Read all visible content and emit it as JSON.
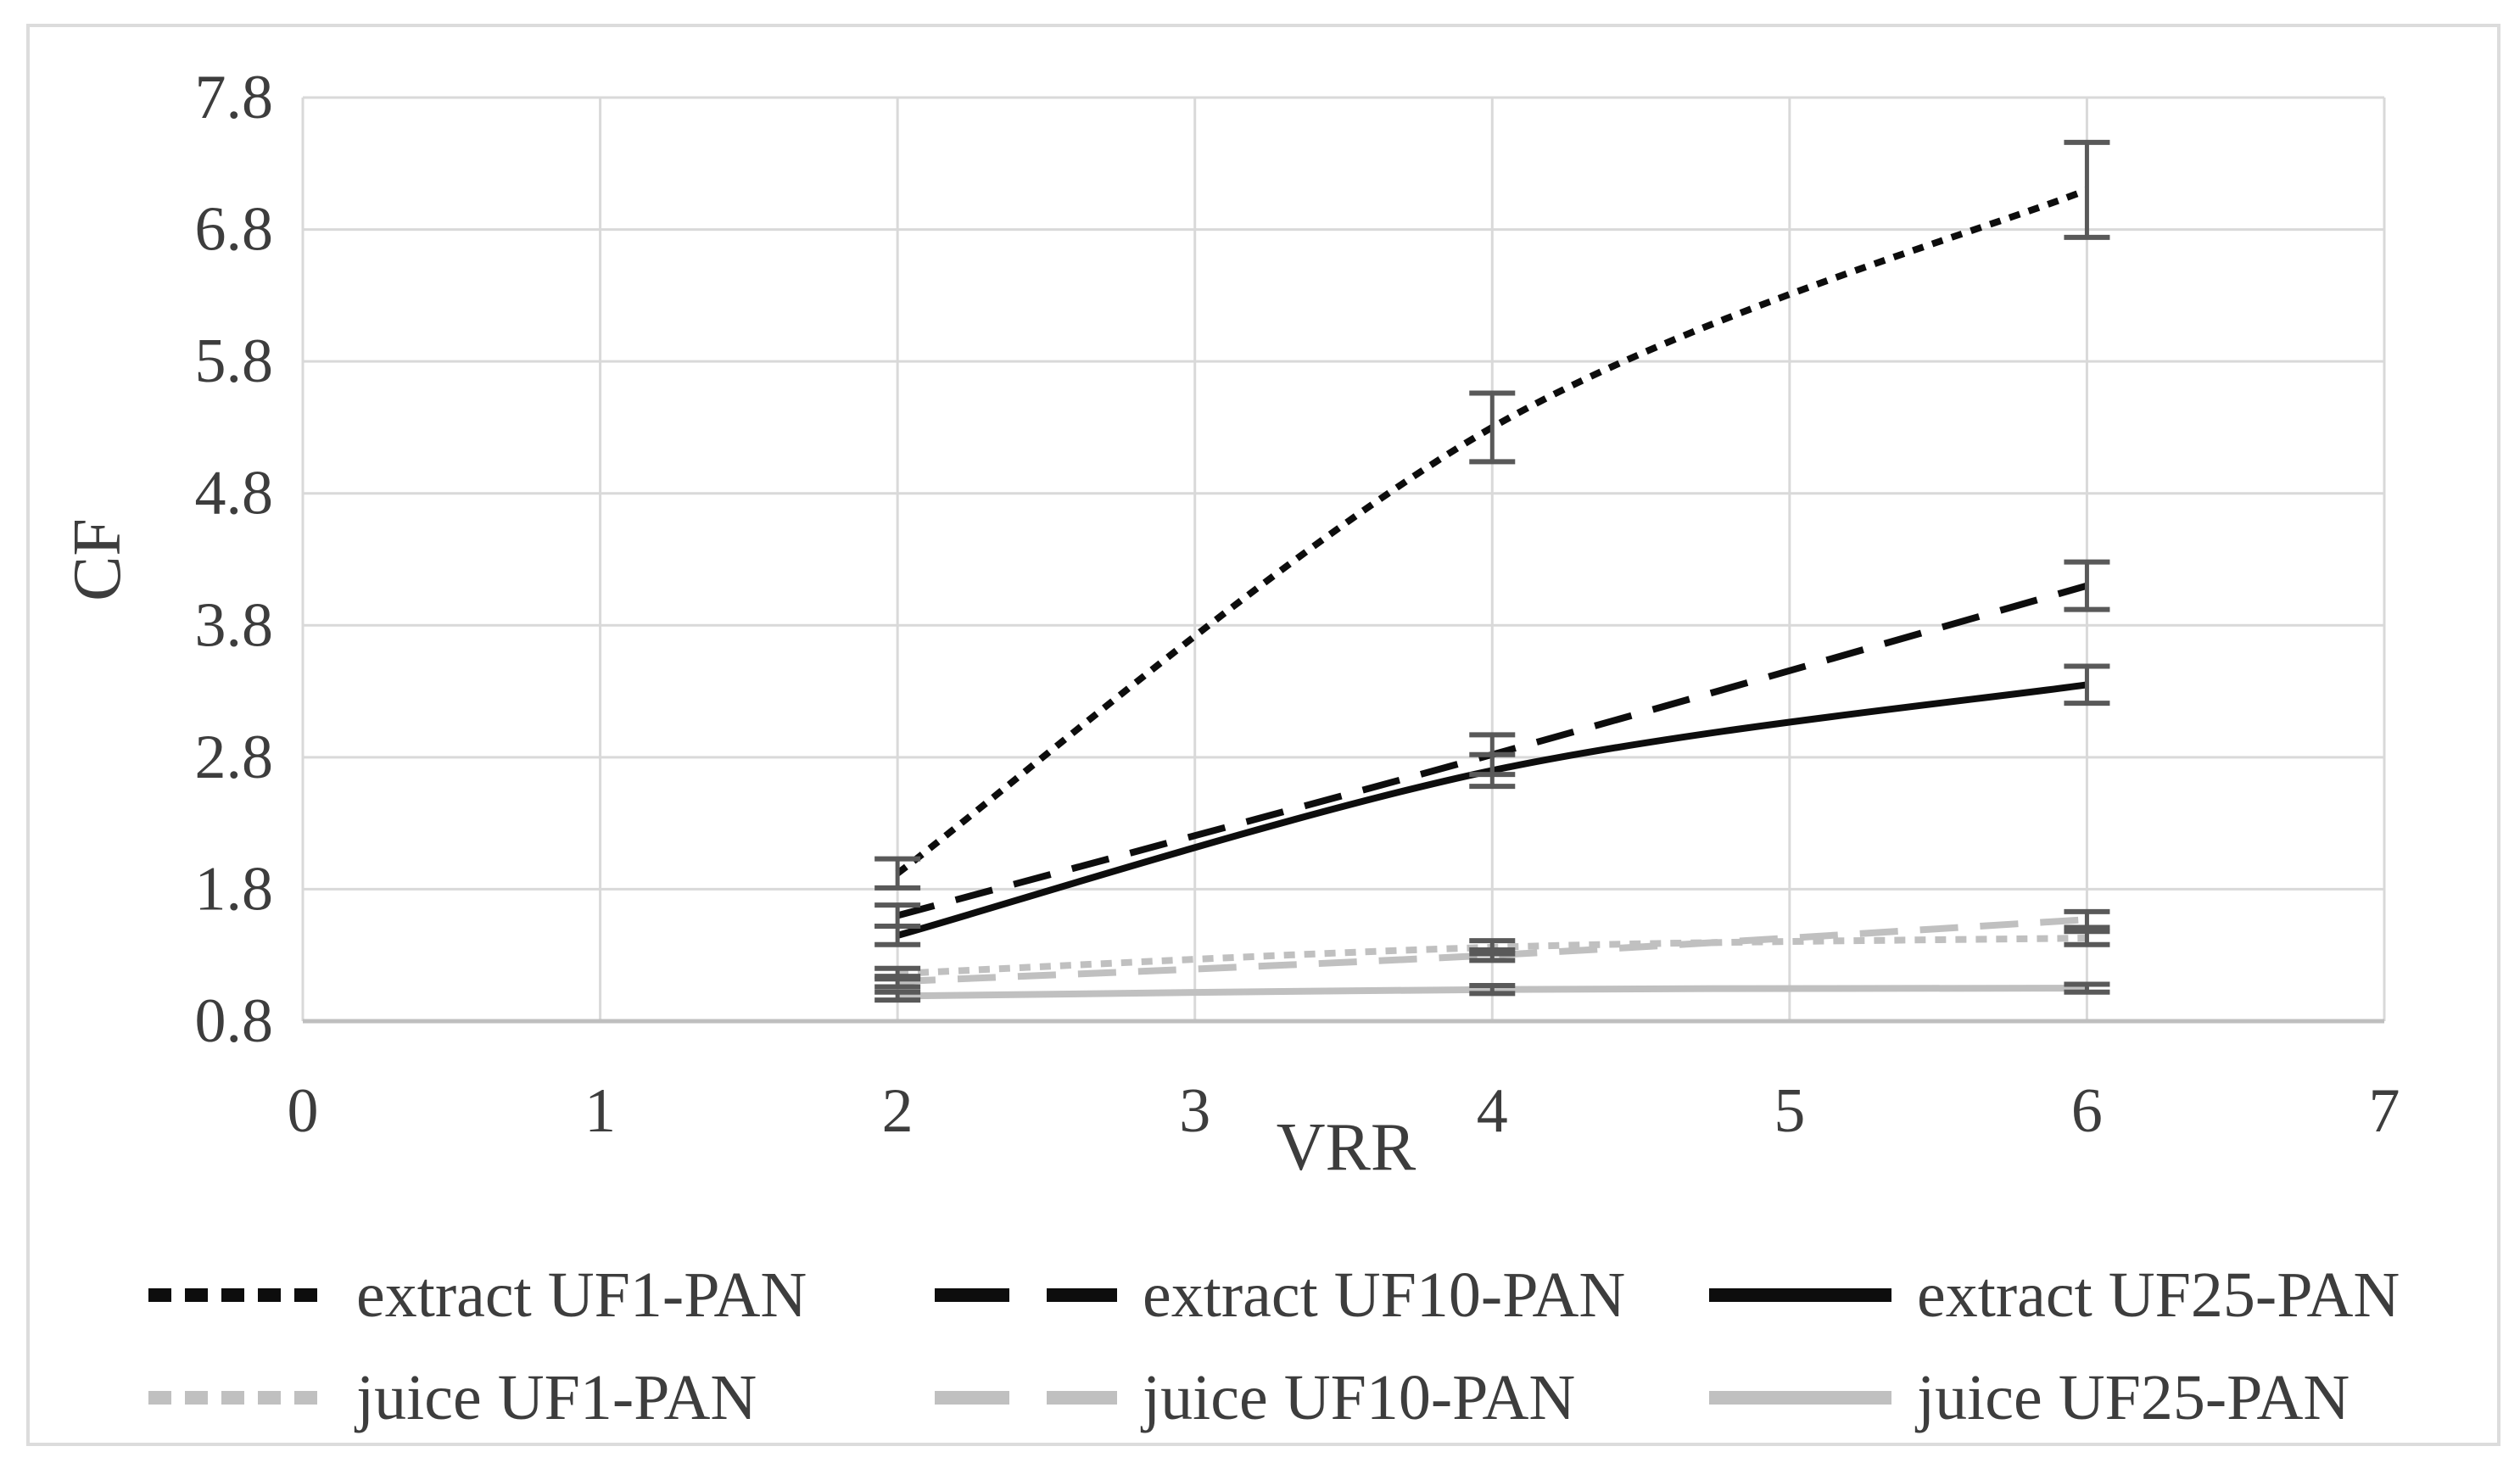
{
  "figure": {
    "background": "#ffffff",
    "border_color": "#dcdcdc"
  },
  "chart_data": {
    "type": "line",
    "title": "",
    "xlabel": "VRR",
    "ylabel": "CF",
    "x": [
      2,
      4,
      6
    ],
    "xlim": [
      0,
      7
    ],
    "ylim": [
      0.8,
      7.8
    ],
    "xticks": [
      0,
      1,
      2,
      3,
      4,
      5,
      6,
      7
    ],
    "yticks": [
      0.8,
      1.8,
      2.8,
      3.8,
      4.8,
      5.8,
      6.8,
      7.8
    ],
    "grid": true,
    "legend_position": "bottom",
    "gridline_color": "#d9d9d9",
    "axis_line_color": "#bfbfbf",
    "error_bar_color": "#595959",
    "text_color": "#3d3d3d",
    "series": [
      {
        "name": "extract UF1-PAN",
        "color": "#0d0d0d",
        "dash": "dot",
        "values": [
          1.92,
          5.3,
          7.1
        ],
        "errors": [
          0.11,
          0.26,
          0.36
        ]
      },
      {
        "name": "extract UF10-PAN",
        "color": "#0d0d0d",
        "dash": "dash",
        "values": [
          1.6,
          2.82,
          4.1
        ],
        "errors": [
          0.08,
          0.15,
          0.18
        ]
      },
      {
        "name": "extract UF25-PAN",
        "color": "#0d0d0d",
        "dash": "solid",
        "values": [
          1.45,
          2.7,
          3.35
        ],
        "errors": [
          0.07,
          0.12,
          0.14
        ]
      },
      {
        "name": "juice UF1-PAN",
        "color": "#c0c0c0",
        "dash": "dot",
        "values": [
          1.16,
          1.36,
          1.43
        ],
        "errors": [
          0.04,
          0.05,
          0.05
        ]
      },
      {
        "name": "juice UF10-PAN",
        "color": "#c0c0c0",
        "dash": "dash",
        "values": [
          1.1,
          1.3,
          1.57
        ],
        "errors": [
          0.04,
          0.04,
          0.06
        ]
      },
      {
        "name": "juice UF25-PAN",
        "color": "#c0c0c0",
        "dash": "solid",
        "values": [
          0.99,
          1.04,
          1.05
        ],
        "errors": [
          0.03,
          0.03,
          0.03
        ]
      }
    ]
  }
}
